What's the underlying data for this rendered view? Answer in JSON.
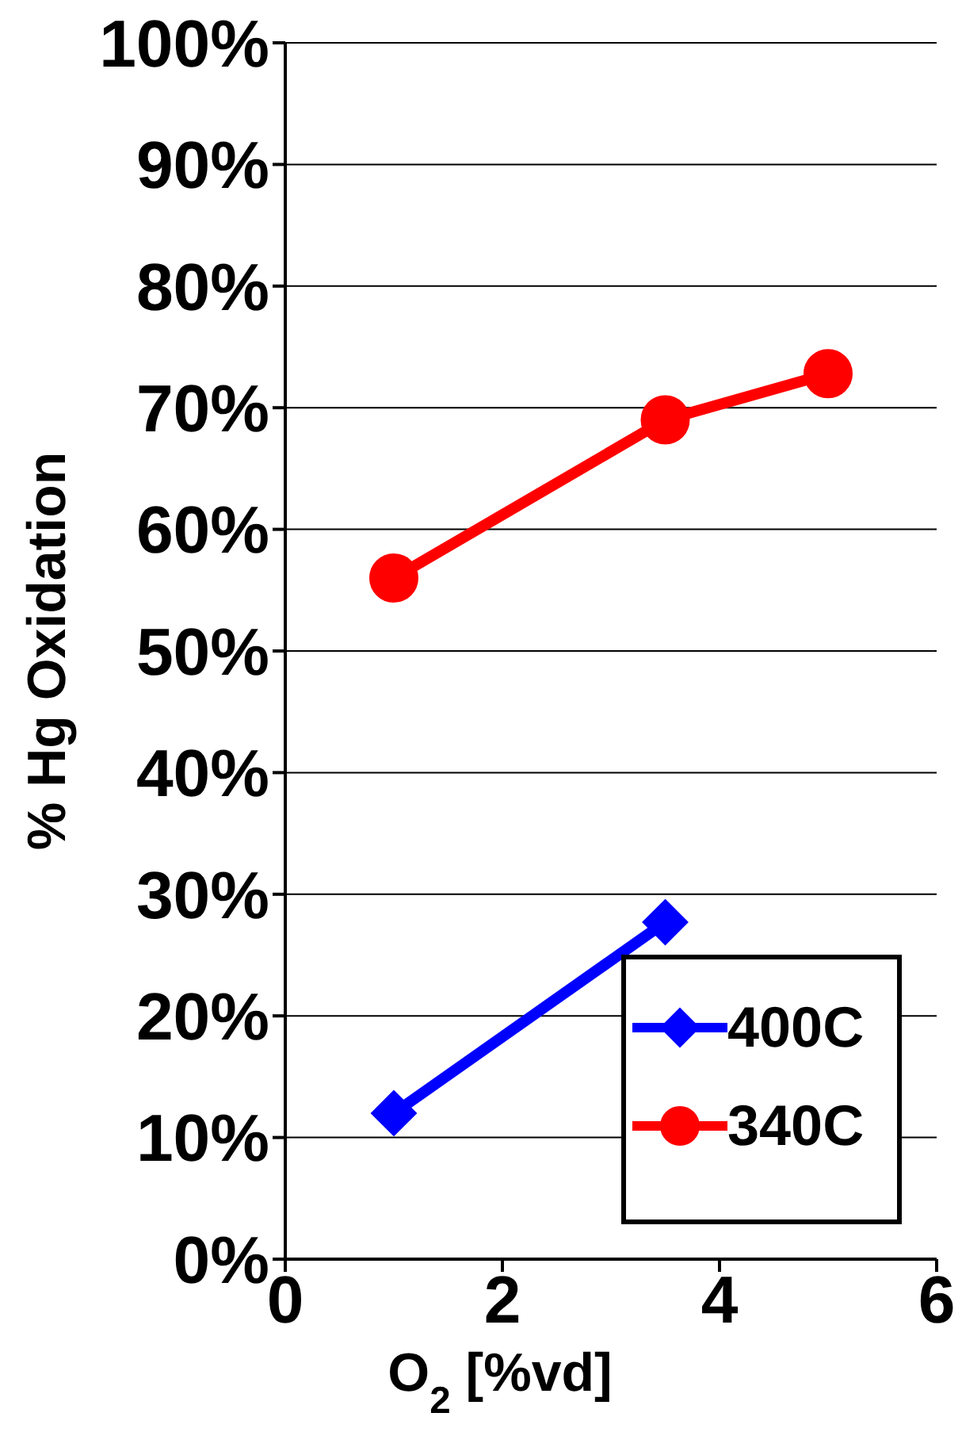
{
  "chart_data": {
    "type": "line",
    "xlabel": "O$_{2}$ [%vd]",
    "ylabel": "% Hg Oxidation",
    "xlim": [
      0,
      6
    ],
    "xticks": [
      0,
      2,
      4,
      6
    ],
    "ylim": [
      0,
      100
    ],
    "yticks": [
      {
        "value": 0,
        "label": "0%"
      },
      {
        "value": 10,
        "label": "10%"
      },
      {
        "value": 20,
        "label": "20%"
      },
      {
        "value": 30,
        "label": "30%"
      },
      {
        "value": 40,
        "label": "40%"
      },
      {
        "value": 50,
        "label": "50%"
      },
      {
        "value": 60,
        "label": "60%"
      },
      {
        "value": 70,
        "label": "70%"
      },
      {
        "value": 80,
        "label": "80%"
      },
      {
        "value": 90,
        "label": "90%"
      },
      {
        "value": 100,
        "label": "100%"
      }
    ],
    "grid": "y",
    "legend": "bottom right",
    "series": [
      {
        "name": "400C",
        "color": "#0000ff",
        "marker": "diamond",
        "x": [
          1,
          3.5
        ],
        "values": [
          12,
          27.7
        ]
      },
      {
        "name": "340C",
        "color": "#ff0000",
        "marker": "circle",
        "x": [
          1,
          3.5,
          5
        ],
        "values": [
          56,
          69,
          72.8
        ]
      }
    ]
  }
}
